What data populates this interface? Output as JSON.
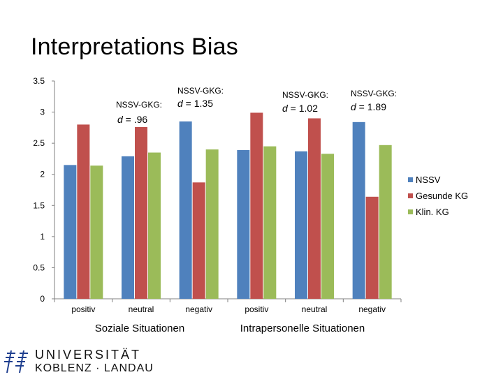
{
  "slide": {
    "title": "Interpretations Bias",
    "group_labels": [
      "Soziale Situationen",
      "Intrapersonelle Situationen"
    ]
  },
  "logo": {
    "line1": "UNIVERSITÄT",
    "line2": "KOBLENZ · LANDAU"
  },
  "chart_data": {
    "type": "bar",
    "categories": [
      "positiv",
      "neutral",
      "negativ",
      "positiv",
      "neutral",
      "negativ"
    ],
    "groups": [
      {
        "label": "Soziale Situationen",
        "categories": [
          "positiv",
          "neutral",
          "negativ"
        ]
      },
      {
        "label": "Intrapersonelle Situationen",
        "categories": [
          "positiv",
          "neutral",
          "negativ"
        ]
      }
    ],
    "series": [
      {
        "name": "NSSV",
        "color": "#4F81BD",
        "values": [
          2.15,
          2.29,
          2.85,
          2.39,
          2.37,
          2.84
        ]
      },
      {
        "name": "Gesunde KG",
        "color": "#C0504D",
        "values": [
          2.8,
          2.76,
          1.87,
          2.99,
          2.9,
          1.64
        ]
      },
      {
        "name": "Klin. KG",
        "color": "#9BBB59",
        "values": [
          2.14,
          2.35,
          2.4,
          2.45,
          2.33,
          2.47
        ]
      }
    ],
    "ylim": [
      0,
      3.5
    ],
    "yticks": [
      "0",
      "0.5",
      "1",
      "1.5",
      "2",
      "2.5",
      "3",
      "3.5"
    ],
    "grid": false,
    "legend": "right",
    "annotations": [
      {
        "label": "NSSV-GKG:",
        "value": "d = .96"
      },
      {
        "label": "NSSV-GKG:",
        "value": "d = 1.35"
      },
      {
        "label": "NSSV-GKG:",
        "value": "d = 1.02"
      },
      {
        "label": "NSSV-GKG:",
        "value": "d = 1.89"
      }
    ]
  }
}
